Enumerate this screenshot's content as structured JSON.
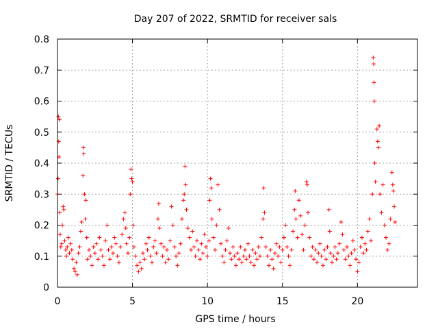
{
  "chart_data": {
    "type": "scatter",
    "title": "Day 207 of 2022, SRMTID for receiver sals",
    "xlabel": "GPS time / hours",
    "ylabel": "SRMTID / TECUs",
    "xlim": [
      0,
      24
    ],
    "ylim": [
      0,
      0.8
    ],
    "xticks": [
      0,
      5,
      10,
      15,
      20
    ],
    "yticks": [
      0,
      0.1,
      0.2,
      0.3,
      0.4,
      0.5,
      0.6,
      0.7,
      0.8
    ],
    "grid": true,
    "marker": "+",
    "color": "#ff0000",
    "series": [
      {
        "name": "SRMTID",
        "points": [
          [
            0.0,
            0.3
          ],
          [
            0.04,
            0.35
          ],
          [
            0.06,
            0.55
          ],
          [
            0.08,
            0.47
          ],
          [
            0.1,
            0.42
          ],
          [
            0.12,
            0.54
          ],
          [
            0.15,
            0.24
          ],
          [
            0.18,
            0.17
          ],
          [
            0.22,
            0.13
          ],
          [
            0.28,
            0.14
          ],
          [
            0.32,
            0.2
          ],
          [
            0.38,
            0.26
          ],
          [
            0.42,
            0.25
          ],
          [
            0.48,
            0.15
          ],
          [
            0.55,
            0.12
          ],
          [
            0.6,
            0.1
          ],
          [
            0.65,
            0.13
          ],
          [
            0.72,
            0.16
          ],
          [
            0.8,
            0.11
          ],
          [
            0.88,
            0.14
          ],
          [
            0.95,
            0.12
          ],
          [
            1.02,
            0.09
          ],
          [
            1.1,
            0.06
          ],
          [
            1.18,
            0.05
          ],
          [
            1.25,
            0.08
          ],
          [
            1.32,
            0.04
          ],
          [
            1.4,
            0.11
          ],
          [
            1.48,
            0.13
          ],
          [
            1.55,
            0.18
          ],
          [
            1.62,
            0.21
          ],
          [
            1.7,
            0.36
          ],
          [
            1.72,
            0.45
          ],
          [
            1.75,
            0.43
          ],
          [
            1.8,
            0.3
          ],
          [
            1.85,
            0.22
          ],
          [
            1.9,
            0.28
          ],
          [
            1.95,
            0.16
          ],
          [
            2.0,
            0.09
          ],
          [
            2.1,
            0.12
          ],
          [
            2.2,
            0.1
          ],
          [
            2.3,
            0.07
          ],
          [
            2.4,
            0.13
          ],
          [
            2.5,
            0.11
          ],
          [
            2.6,
            0.14
          ],
          [
            2.7,
            0.09
          ],
          [
            2.8,
            0.16
          ],
          [
            2.9,
            0.12
          ],
          [
            3.0,
            0.1
          ],
          [
            3.1,
            0.07
          ],
          [
            3.2,
            0.15
          ],
          [
            3.3,
            0.2
          ],
          [
            3.4,
            0.12
          ],
          [
            3.5,
            0.09
          ],
          [
            3.6,
            0.13
          ],
          [
            3.7,
            0.11
          ],
          [
            3.8,
            0.16
          ],
          [
            3.9,
            0.14
          ],
          [
            4.0,
            0.1
          ],
          [
            4.1,
            0.08
          ],
          [
            4.2,
            0.13
          ],
          [
            4.3,
            0.17
          ],
          [
            4.4,
            0.22
          ],
          [
            4.5,
            0.24
          ],
          [
            4.55,
            0.19
          ],
          [
            4.6,
            0.14
          ],
          [
            4.7,
            0.11
          ],
          [
            4.8,
            0.16
          ],
          [
            4.85,
            0.3
          ],
          [
            4.9,
            0.38
          ],
          [
            4.95,
            0.35
          ],
          [
            5.0,
            0.34
          ],
          [
            5.05,
            0.2
          ],
          [
            5.1,
            0.13
          ],
          [
            5.2,
            0.1
          ],
          [
            5.3,
            0.07
          ],
          [
            5.4,
            0.05
          ],
          [
            5.5,
            0.08
          ],
          [
            5.6,
            0.06
          ],
          [
            5.7,
            0.11
          ],
          [
            5.8,
            0.09
          ],
          [
            5.9,
            0.14
          ],
          [
            6.0,
            0.12
          ],
          [
            6.1,
            0.16
          ],
          [
            6.2,
            0.1
          ],
          [
            6.3,
            0.08
          ],
          [
            6.4,
            0.13
          ],
          [
            6.5,
            0.15
          ],
          [
            6.6,
            0.11
          ],
          [
            6.7,
            0.22
          ],
          [
            6.75,
            0.27
          ],
          [
            6.8,
            0.19
          ],
          [
            6.9,
            0.14
          ],
          [
            7.0,
            0.1
          ],
          [
            7.1,
            0.13
          ],
          [
            7.2,
            0.08
          ],
          [
            7.3,
            0.12
          ],
          [
            7.4,
            0.09
          ],
          [
            7.5,
            0.15
          ],
          [
            7.6,
            0.26
          ],
          [
            7.7,
            0.2
          ],
          [
            7.8,
            0.13
          ],
          [
            7.9,
            0.1
          ],
          [
            8.0,
            0.07
          ],
          [
            8.1,
            0.11
          ],
          [
            8.2,
            0.14
          ],
          [
            8.3,
            0.22
          ],
          [
            8.4,
            0.28
          ],
          [
            8.45,
            0.3
          ],
          [
            8.5,
            0.39
          ],
          [
            8.55,
            0.33
          ],
          [
            8.6,
            0.25
          ],
          [
            8.7,
            0.19
          ],
          [
            8.8,
            0.16
          ],
          [
            8.9,
            0.12
          ],
          [
            9.0,
            0.18
          ],
          [
            9.1,
            0.13
          ],
          [
            9.2,
            0.1
          ],
          [
            9.3,
            0.15
          ],
          [
            9.4,
            0.12
          ],
          [
            9.5,
            0.09
          ],
          [
            9.6,
            0.14
          ],
          [
            9.7,
            0.11
          ],
          [
            9.8,
            0.17
          ],
          [
            9.9,
            0.13
          ],
          [
            10.0,
            0.1
          ],
          [
            10.1,
            0.15
          ],
          [
            10.15,
            0.28
          ],
          [
            10.2,
            0.35
          ],
          [
            10.25,
            0.32
          ],
          [
            10.3,
            0.22
          ],
          [
            10.4,
            0.16
          ],
          [
            10.5,
            0.12
          ],
          [
            10.6,
            0.2
          ],
          [
            10.7,
            0.33
          ],
          [
            10.8,
            0.25
          ],
          [
            10.9,
            0.14
          ],
          [
            11.0,
            0.1
          ],
          [
            11.1,
            0.08
          ],
          [
            11.2,
            0.12
          ],
          [
            11.3,
            0.15
          ],
          [
            11.4,
            0.19
          ],
          [
            11.5,
            0.11
          ],
          [
            11.6,
            0.09
          ],
          [
            11.7,
            0.13
          ],
          [
            11.8,
            0.1
          ],
          [
            11.9,
            0.07
          ],
          [
            12.0,
            0.11
          ],
          [
            12.1,
            0.09
          ],
          [
            12.2,
            0.13
          ],
          [
            12.3,
            0.08
          ],
          [
            12.4,
            0.1
          ],
          [
            12.5,
            0.12
          ],
          [
            12.6,
            0.09
          ],
          [
            12.7,
            0.14
          ],
          [
            12.8,
            0.1
          ],
          [
            12.9,
            0.08
          ],
          [
            13.0,
            0.12
          ],
          [
            13.1,
            0.07
          ],
          [
            13.2,
            0.11
          ],
          [
            13.3,
            0.09
          ],
          [
            13.4,
            0.13
          ],
          [
            13.5,
            0.1
          ],
          [
            13.6,
            0.16
          ],
          [
            13.7,
            0.22
          ],
          [
            13.75,
            0.32
          ],
          [
            13.8,
            0.24
          ],
          [
            13.9,
            0.13
          ],
          [
            14.0,
            0.1
          ],
          [
            14.1,
            0.07
          ],
          [
            14.2,
            0.12
          ],
          [
            14.3,
            0.09
          ],
          [
            14.4,
            0.06
          ],
          [
            14.5,
            0.11
          ],
          [
            14.6,
            0.14
          ],
          [
            14.7,
            0.1
          ],
          [
            14.8,
            0.13
          ],
          [
            14.9,
            0.08
          ],
          [
            15.0,
            0.12
          ],
          [
            15.1,
            0.16
          ],
          [
            15.2,
            0.2
          ],
          [
            15.3,
            0.13
          ],
          [
            15.4,
            0.1
          ],
          [
            15.5,
            0.07
          ],
          [
            15.6,
            0.12
          ],
          [
            15.7,
            0.18
          ],
          [
            15.8,
            0.25
          ],
          [
            15.85,
            0.31
          ],
          [
            15.9,
            0.22
          ],
          [
            16.0,
            0.16
          ],
          [
            16.1,
            0.28
          ],
          [
            16.2,
            0.23
          ],
          [
            16.3,
            0.17
          ],
          [
            16.4,
            0.12
          ],
          [
            16.5,
            0.2
          ],
          [
            16.6,
            0.34
          ],
          [
            16.65,
            0.33
          ],
          [
            16.7,
            0.24
          ],
          [
            16.8,
            0.16
          ],
          [
            16.9,
            0.1
          ],
          [
            17.0,
            0.13
          ],
          [
            17.1,
            0.09
          ],
          [
            17.2,
            0.12
          ],
          [
            17.3,
            0.08
          ],
          [
            17.4,
            0.11
          ],
          [
            17.5,
            0.14
          ],
          [
            17.6,
            0.1
          ],
          [
            17.7,
            0.07
          ],
          [
            17.8,
            0.12
          ],
          [
            17.9,
            0.09
          ],
          [
            18.0,
            0.13
          ],
          [
            18.1,
            0.25
          ],
          [
            18.15,
            0.18
          ],
          [
            18.2,
            0.11
          ],
          [
            18.3,
            0.08
          ],
          [
            18.4,
            0.1
          ],
          [
            18.5,
            0.13
          ],
          [
            18.6,
            0.09
          ],
          [
            18.7,
            0.11
          ],
          [
            18.8,
            0.14
          ],
          [
            18.9,
            0.21
          ],
          [
            19.0,
            0.17
          ],
          [
            19.1,
            0.12
          ],
          [
            19.2,
            0.09
          ],
          [
            19.3,
            0.13
          ],
          [
            19.4,
            0.1
          ],
          [
            19.5,
            0.07
          ],
          [
            19.6,
            0.11
          ],
          [
            19.7,
            0.15
          ],
          [
            19.8,
            0.12
          ],
          [
            19.9,
            0.09
          ],
          [
            20.0,
            0.05
          ],
          [
            20.1,
            0.08
          ],
          [
            20.2,
            0.13
          ],
          [
            20.3,
            0.16
          ],
          [
            20.4,
            0.11
          ],
          [
            20.5,
            0.14
          ],
          [
            20.6,
            0.12
          ],
          [
            20.7,
            0.18
          ],
          [
            20.8,
            0.22
          ],
          [
            20.9,
            0.15
          ],
          [
            21.0,
            0.3
          ],
          [
            21.05,
            0.74
          ],
          [
            21.08,
            0.72
          ],
          [
            21.1,
            0.66
          ],
          [
            21.12,
            0.6
          ],
          [
            21.15,
            0.4
          ],
          [
            21.2,
            0.34
          ],
          [
            21.3,
            0.51
          ],
          [
            21.35,
            0.47
          ],
          [
            21.4,
            0.45
          ],
          [
            21.45,
            0.52
          ],
          [
            21.5,
            0.3
          ],
          [
            21.6,
            0.24
          ],
          [
            21.7,
            0.33
          ],
          [
            21.8,
            0.2
          ],
          [
            21.9,
            0.16
          ],
          [
            22.0,
            0.12
          ],
          [
            22.1,
            0.14
          ],
          [
            22.2,
            0.22
          ],
          [
            22.3,
            0.37
          ],
          [
            22.35,
            0.33
          ],
          [
            22.4,
            0.31
          ],
          [
            22.45,
            0.26
          ],
          [
            22.5,
            0.21
          ]
        ]
      }
    ]
  }
}
